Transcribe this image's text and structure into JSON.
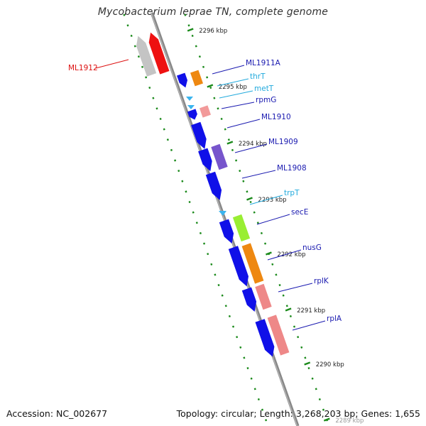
{
  "title": "Mycobacterium leprae TN, complete genome",
  "footer": {
    "accession": "Accession: NC_002677",
    "topology": "Topology: circular; Length: 3,268,203 bp; Genes: 1,655"
  },
  "colors": {
    "backbone": "#888888",
    "ruler_ticks": "#1b8a1b",
    "protein_gene": "#1010e8",
    "trna": "#3ab4ee",
    "highlight_gene": "#ee1111",
    "label_dark": "#1a1ab0",
    "label_light": "#22aadd",
    "label_highlight": "#dd1111"
  },
  "ruler": {
    "ticks": [
      {
        "label": "2296 kbp"
      },
      {
        "label": "2295 kbp"
      },
      {
        "label": "2294 kbp"
      },
      {
        "label": "2293 kbp"
      },
      {
        "label": "2292 kbp"
      },
      {
        "label": "2291 kbp"
      },
      {
        "label": "2290 kbp"
      },
      {
        "label": "2289 kbp"
      }
    ]
  },
  "genes": [
    {
      "name": "ML1912",
      "type": "protein",
      "label_color": "highlight"
    },
    {
      "name": "ML1911A",
      "type": "protein",
      "label_color": "dark"
    },
    {
      "name": "thrT",
      "type": "tRNA",
      "label_color": "light"
    },
    {
      "name": "metT",
      "type": "tRNA",
      "label_color": "light"
    },
    {
      "name": "rpmG",
      "type": "protein",
      "label_color": "dark"
    },
    {
      "name": "ML1910",
      "type": "protein",
      "label_color": "dark"
    },
    {
      "name": "ML1909",
      "type": "protein",
      "label_color": "dark"
    },
    {
      "name": "ML1908",
      "type": "protein",
      "label_color": "dark"
    },
    {
      "name": "trpT",
      "type": "tRNA",
      "label_color": "light"
    },
    {
      "name": "secE",
      "type": "protein",
      "label_color": "dark"
    },
    {
      "name": "nusG",
      "type": "protein",
      "label_color": "dark"
    },
    {
      "name": "rplK",
      "type": "protein",
      "label_color": "dark"
    },
    {
      "name": "rplA",
      "type": "protein",
      "label_color": "dark"
    }
  ]
}
